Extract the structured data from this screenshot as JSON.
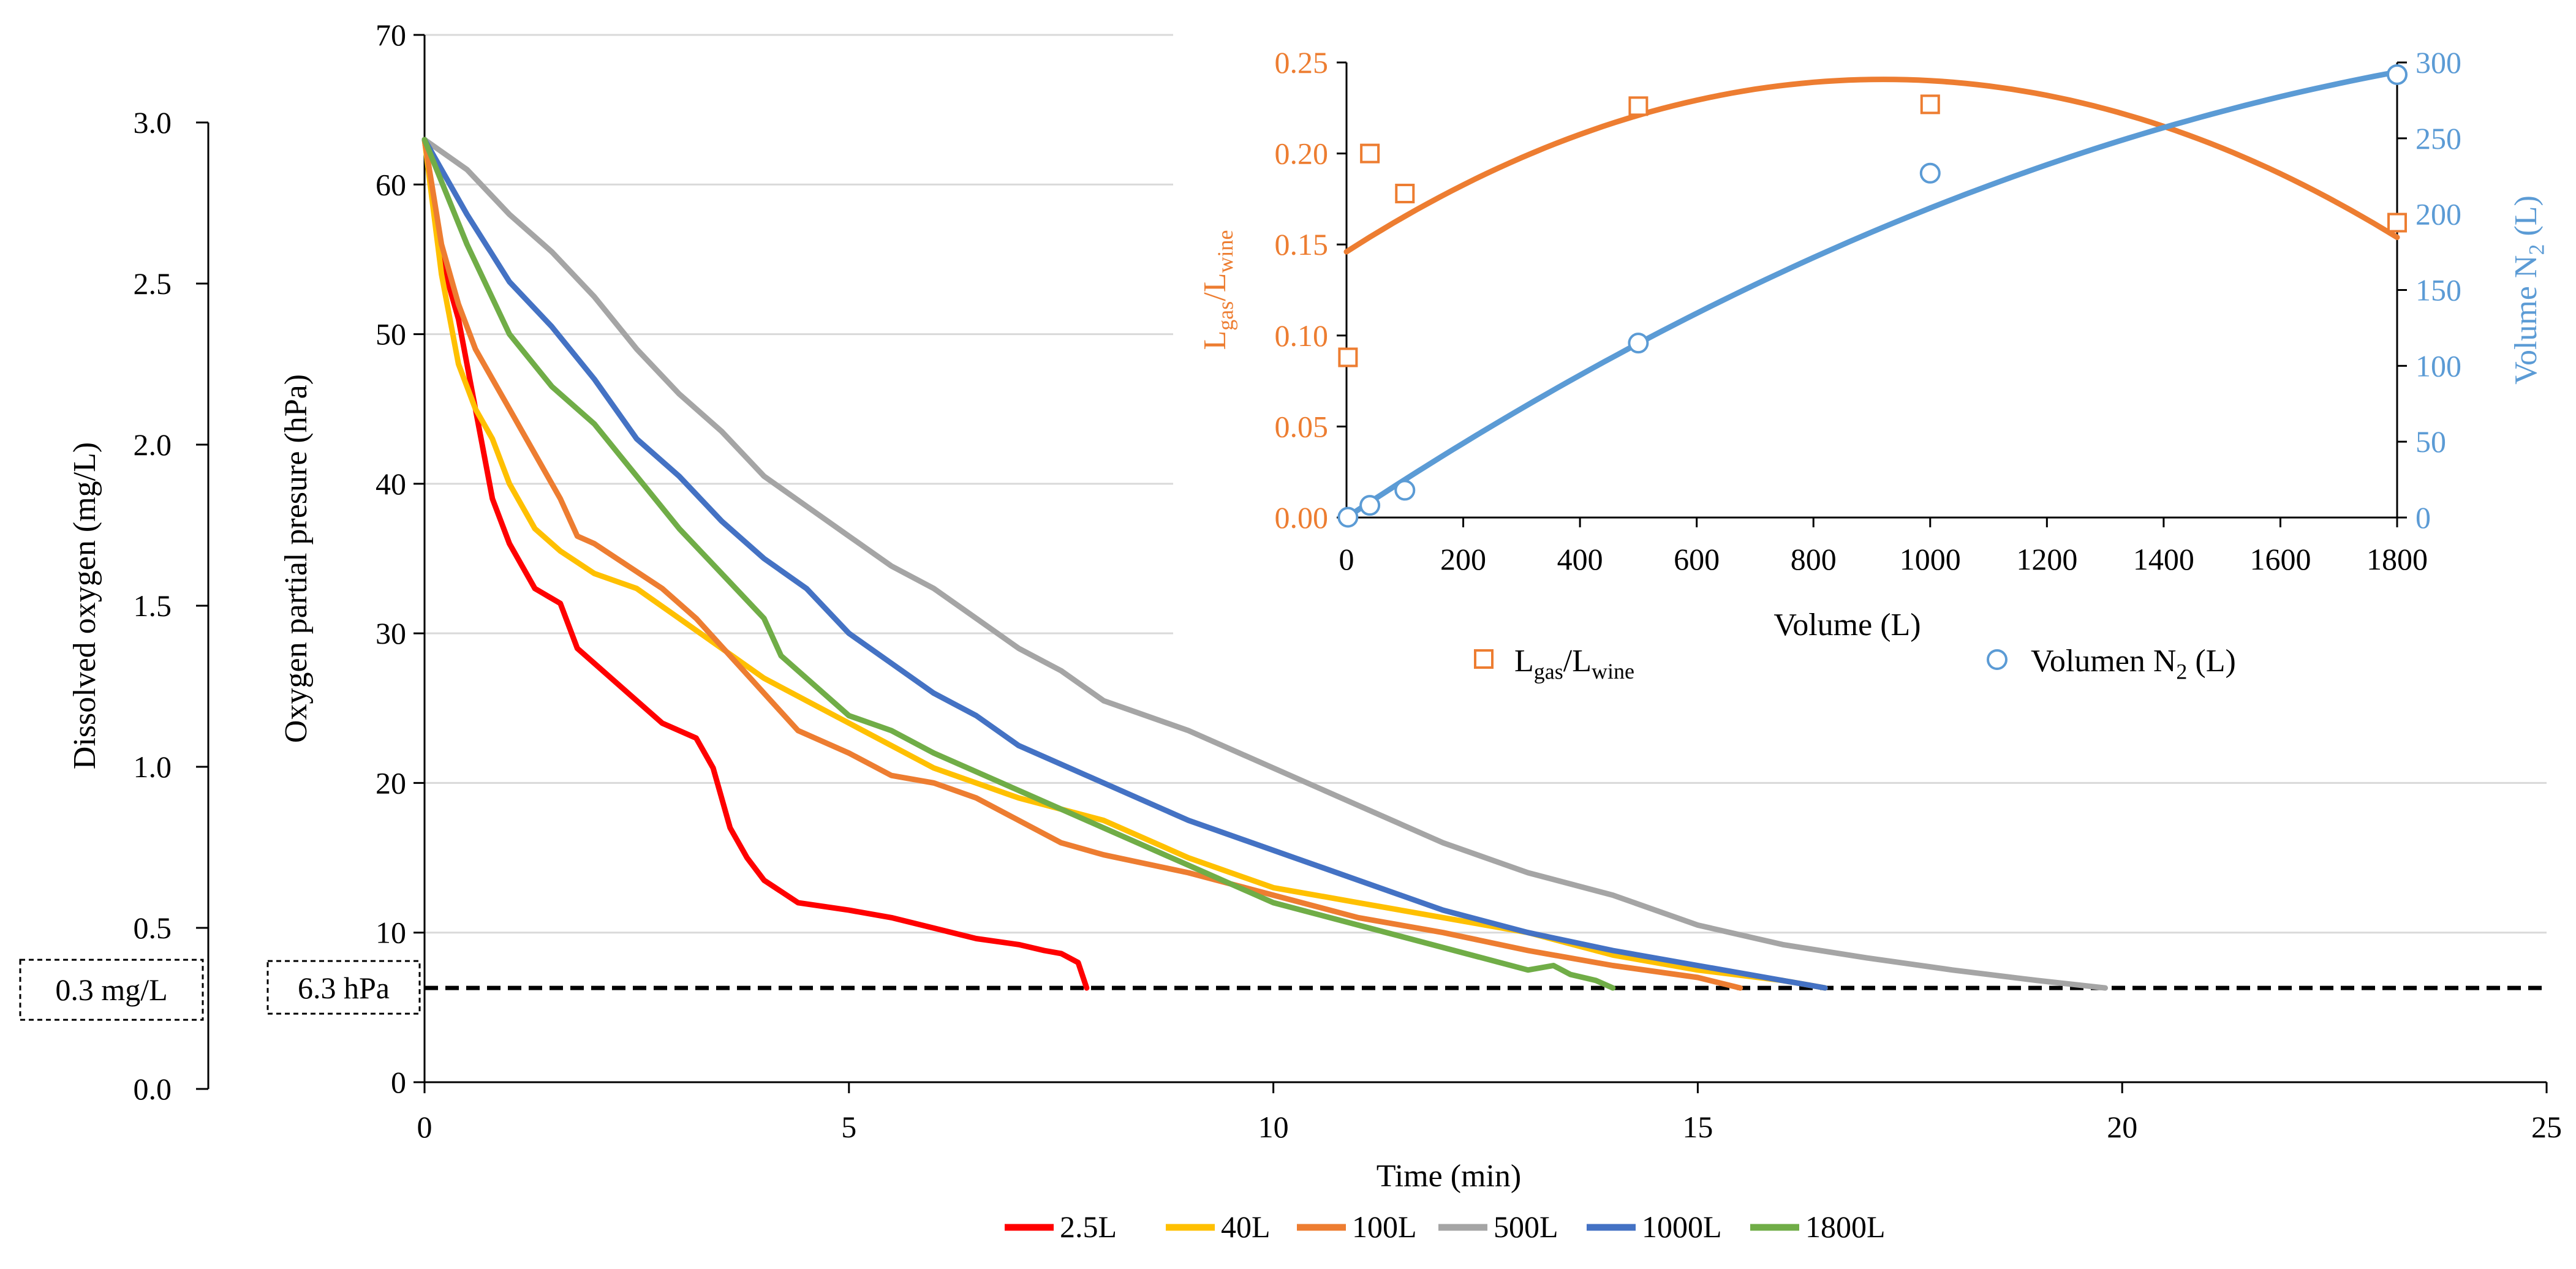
{
  "chart_data": [
    {
      "type": "line",
      "xlabel": "Time (min)",
      "ylabel": "Oxygen partial presure (hPa)",
      "secondary_ylabel": "Dissolved oxygen (mg/L)",
      "xlim": [
        0,
        25
      ],
      "ylim": [
        0,
        70
      ],
      "secondary_ylim": [
        0,
        3.0
      ],
      "x_ticks": [
        "0",
        "5",
        "10",
        "15",
        "20",
        "25"
      ],
      "y_ticks": [
        "0",
        "10",
        "20",
        "30",
        "40",
        "50",
        "60",
        "70"
      ],
      "secondary_y_ticks": [
        "0.0",
        "0.5",
        "1.0",
        "1.5",
        "2.0",
        "2.5",
        "3.0"
      ],
      "grid": true,
      "legend_position": "bottom",
      "threshold": {
        "value": 6.3,
        "label_hpa": "6.3 hPa",
        "label_mgl": "0.3 mg/L"
      },
      "series": [
        {
          "name": "2.5L",
          "color": "#ff0000",
          "x": [
            0,
            0.2,
            0.4,
            0.6,
            0.8,
            1.0,
            1.3,
            1.6,
            1.8,
            2.0,
            2.4,
            2.8,
            3.2,
            3.4,
            3.6,
            3.8,
            4.0,
            4.4,
            5.0,
            5.5,
            6.0,
            6.5,
            7.0,
            7.3,
            7.5,
            7.7,
            7.8
          ],
          "y": [
            63,
            55,
            51,
            45,
            39,
            36,
            33,
            32,
            29,
            28,
            26,
            24,
            23,
            21,
            17,
            15,
            13.5,
            12,
            11.5,
            11,
            10.3,
            9.6,
            9.2,
            8.8,
            8.6,
            8.0,
            6.3
          ]
        },
        {
          "name": "40L",
          "color": "#ffc000",
          "x": [
            0,
            0.2,
            0.4,
            0.6,
            0.8,
            1.0,
            1.3,
            1.6,
            2.0,
            2.5,
            3.0,
            3.5,
            4.0,
            4.5,
            5.0,
            6.0,
            7.0,
            8.0,
            9.0,
            10.0,
            11.0,
            12.0,
            13.0,
            14.0,
            15.0,
            16.0,
            16.5
          ],
          "y": [
            63,
            54,
            48,
            45,
            43,
            40,
            37,
            35.5,
            34,
            33,
            31,
            29,
            27,
            25.5,
            24,
            21,
            19,
            17.5,
            15,
            13,
            12,
            11,
            10,
            8.5,
            7.5,
            6.8,
            6.3
          ]
        },
        {
          "name": "100L",
          "color": "#ed7d31",
          "x": [
            0,
            0.2,
            0.4,
            0.6,
            0.8,
            1.0,
            1.3,
            1.6,
            1.8,
            2.0,
            2.4,
            2.8,
            3.2,
            3.6,
            4.0,
            4.4,
            5.0,
            5.5,
            6.0,
            6.5,
            7.0,
            7.5,
            8.0,
            9.0,
            10.0,
            11.0,
            12.0,
            13.0,
            14.0,
            15.0,
            15.5
          ],
          "y": [
            63,
            56,
            52,
            49,
            47,
            45,
            42,
            39,
            36.5,
            36,
            34.5,
            33,
            31,
            28.5,
            26,
            23.5,
            22,
            20.5,
            20,
            19,
            17.5,
            16,
            15.2,
            14,
            12.5,
            11,
            10,
            8.8,
            7.8,
            7,
            6.3
          ]
        },
        {
          "name": "500L",
          "color": "#a5a5a5",
          "x": [
            0,
            0.5,
            1.0,
            1.5,
            2.0,
            2.5,
            3.0,
            3.5,
            4.0,
            4.5,
            5.0,
            5.5,
            6.0,
            6.5,
            7.0,
            7.5,
            8.0,
            9.0,
            10.0,
            11.0,
            12.0,
            13.0,
            14.0,
            15.0,
            16.0,
            17.0,
            18.0,
            19.0,
            19.8
          ],
          "y": [
            63,
            61,
            58,
            55.5,
            52.5,
            49,
            46,
            43.5,
            40.5,
            38.5,
            36.5,
            34.5,
            33,
            31,
            29,
            27.5,
            25.5,
            23.5,
            21,
            18.5,
            16,
            14,
            12.5,
            10.5,
            9.2,
            8.3,
            7.5,
            6.8,
            6.3
          ]
        },
        {
          "name": "1000L",
          "color": "#4472c4",
          "x": [
            0,
            0.5,
            1.0,
            1.5,
            2.0,
            2.5,
            3.0,
            3.5,
            4.0,
            4.5,
            5.0,
            5.5,
            6.0,
            6.5,
            7.0,
            8.0,
            9.0,
            10.0,
            11.0,
            12.0,
            13.0,
            14.0,
            15.0,
            16.0,
            16.5
          ],
          "y": [
            63,
            58,
            53.5,
            50.5,
            47,
            43,
            40.5,
            37.5,
            35,
            33,
            30,
            28,
            26,
            24.5,
            22.5,
            20,
            17.5,
            15.5,
            13.5,
            11.5,
            10,
            8.8,
            7.8,
            6.8,
            6.3
          ]
        },
        {
          "name": "1800L",
          "color": "#70ad47",
          "x": [
            0,
            0.5,
            1.0,
            1.5,
            2.0,
            2.5,
            3.0,
            3.5,
            4.0,
            4.2,
            4.5,
            5.0,
            5.5,
            6.0,
            7.0,
            8.0,
            9.0,
            10.0,
            11.0,
            12.0,
            13.0,
            13.3,
            13.5,
            13.8,
            14.0
          ],
          "y": [
            63,
            56,
            50,
            46.5,
            44,
            40.5,
            37,
            34,
            31,
            28.5,
            27,
            24.5,
            23.5,
            22,
            19.5,
            17,
            14.5,
            12,
            10.5,
            9,
            7.5,
            7.8,
            7.2,
            6.8,
            6.3
          ]
        }
      ]
    },
    {
      "type": "scatter",
      "xlabel": "Volume (L)",
      "ylabel": "Lgas/Lwine",
      "secondary_ylabel": "Volume N2 (L)",
      "xlim": [
        0,
        1800
      ],
      "ylim": [
        0,
        0.25
      ],
      "secondary_ylim": [
        0,
        300
      ],
      "x_ticks": [
        "0",
        "200",
        "400",
        "600",
        "800",
        "1000",
        "1200",
        "1400",
        "1600",
        "1800"
      ],
      "y_ticks": [
        "0.00",
        "0.05",
        "0.10",
        "0.15",
        "0.20",
        "0.25"
      ],
      "secondary_y_ticks": [
        "0",
        "50",
        "100",
        "150",
        "200",
        "250",
        "300"
      ],
      "legend_position": "bottom",
      "legend_entries": [
        "Lgas/Lwine",
        "Volumen N2 (L)"
      ],
      "series": [
        {
          "name": "Lgas/Lwine",
          "axis": "left",
          "marker": "square",
          "color": "#ed7d31",
          "x": [
            2.5,
            40,
            100,
            500,
            1000,
            1800
          ],
          "y": [
            0.088,
            0.2,
            0.178,
            0.226,
            0.227,
            0.162
          ],
          "trend": {
            "kind": "polynomial",
            "coefficients": [
              0.146,
              0.000206,
              -1.12e-07
            ]
          }
        },
        {
          "name": "Volumen N2 (L)",
          "axis": "right",
          "marker": "circle",
          "color": "#5b9bd5",
          "x": [
            2.5,
            40,
            100,
            500,
            1000,
            1800
          ],
          "y": [
            0.2,
            8,
            18,
            115,
            227,
            292
          ],
          "trend": {
            "kind": "polynomial",
            "coefficients": [
              0,
              0.255,
              -5.1e-05
            ]
          }
        }
      ]
    }
  ]
}
